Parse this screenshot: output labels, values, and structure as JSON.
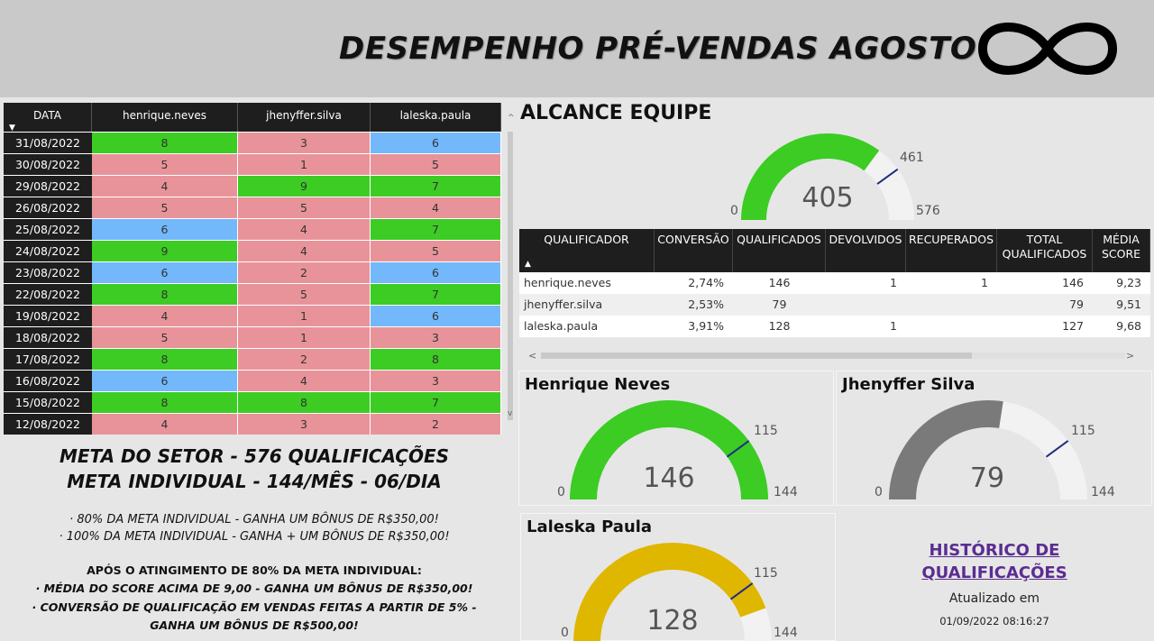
{
  "header": {
    "title": "DESEMPENHO PRÉ-VENDAS AGOSTO",
    "logo_icon": "infinity-icon"
  },
  "colors": {
    "green": "#3ccc24",
    "pink": "#e8939a",
    "blue": "#72b8fa",
    "gold": "#dfb600",
    "grey": "#7a7a7a",
    "track": "#f2f2f2",
    "target": "#1f2d85"
  },
  "matrix": {
    "headers": [
      "DATA",
      "henrique.neves",
      "jhenyffer.silva",
      "laleska.paula"
    ],
    "rows": [
      {
        "date": "31/08/2022",
        "cells": [
          [
            "8",
            "green"
          ],
          [
            "3",
            "pink"
          ],
          [
            "6",
            "blue"
          ]
        ]
      },
      {
        "date": "30/08/2022",
        "cells": [
          [
            "5",
            "pink"
          ],
          [
            "1",
            "pink"
          ],
          [
            "5",
            "pink"
          ]
        ]
      },
      {
        "date": "29/08/2022",
        "cells": [
          [
            "4",
            "pink"
          ],
          [
            "9",
            "green"
          ],
          [
            "7",
            "green"
          ]
        ]
      },
      {
        "date": "26/08/2022",
        "cells": [
          [
            "5",
            "pink"
          ],
          [
            "5",
            "pink"
          ],
          [
            "4",
            "pink"
          ]
        ]
      },
      {
        "date": "25/08/2022",
        "cells": [
          [
            "6",
            "blue"
          ],
          [
            "4",
            "pink"
          ],
          [
            "7",
            "green"
          ]
        ]
      },
      {
        "date": "24/08/2022",
        "cells": [
          [
            "9",
            "green"
          ],
          [
            "4",
            "pink"
          ],
          [
            "5",
            "pink"
          ]
        ]
      },
      {
        "date": "23/08/2022",
        "cells": [
          [
            "6",
            "blue"
          ],
          [
            "2",
            "pink"
          ],
          [
            "6",
            "blue"
          ]
        ]
      },
      {
        "date": "22/08/2022",
        "cells": [
          [
            "8",
            "green"
          ],
          [
            "5",
            "pink"
          ],
          [
            "7",
            "green"
          ]
        ]
      },
      {
        "date": "19/08/2022",
        "cells": [
          [
            "4",
            "pink"
          ],
          [
            "1",
            "pink"
          ],
          [
            "6",
            "blue"
          ]
        ]
      },
      {
        "date": "18/08/2022",
        "cells": [
          [
            "5",
            "pink"
          ],
          [
            "1",
            "pink"
          ],
          [
            "3",
            "pink"
          ]
        ]
      },
      {
        "date": "17/08/2022",
        "cells": [
          [
            "8",
            "green"
          ],
          [
            "2",
            "pink"
          ],
          [
            "8",
            "green"
          ]
        ]
      },
      {
        "date": "16/08/2022",
        "cells": [
          [
            "6",
            "blue"
          ],
          [
            "4",
            "pink"
          ],
          [
            "3",
            "pink"
          ]
        ]
      },
      {
        "date": "15/08/2022",
        "cells": [
          [
            "8",
            "green"
          ],
          [
            "8",
            "green"
          ],
          [
            "7",
            "green"
          ]
        ]
      },
      {
        "date": "12/08/2022",
        "cells": [
          [
            "4",
            "pink"
          ],
          [
            "3",
            "pink"
          ],
          [
            "2",
            "pink"
          ]
        ]
      }
    ]
  },
  "metas": {
    "line1": "META DO SETOR - 576 QUALIFICAÇÕES",
    "line2": "META INDIVIDUAL - 144/MÊS - 06/DIA",
    "rules": [
      "· 80% DA META INDIVIDUAL - GANHA UM BÔNUS DE R$350,00!",
      "· 100% DA META INDIVIDUAL - GANHA + UM BÔNUS DE R$350,00!",
      "APÓS O ATINGIMENTO DE 80% DA META INDIVIDUAL:",
      "· MÉDIA DO SCORE ACIMA DE 9,00 - GANHA UM BÔNUS DE R$350,00!",
      "· CONVERSÃO DE QUALIFICAÇÃO EM VENDAS FEITAS A PARTIR DE 5% -",
      "GANHA UM BÔNUS DE R$500,00!"
    ]
  },
  "alcance": {
    "title": "ALCANCE EQUIPE",
    "min": 0,
    "max": 576,
    "target": 461,
    "value": 405,
    "min_label": "0",
    "max_label": "576",
    "target_label": "461",
    "value_label": "405"
  },
  "qualif_table": {
    "headers": [
      "QUALIFICADOR",
      "CONVERSÃO",
      "QUALIFICADOS",
      "DEVOLVIDOS",
      "RECUPERADOS",
      "TOTAL QUALIFICADOS",
      "MÉDIA SCORE"
    ],
    "rows": [
      [
        "henrique.neves",
        "2,74%",
        "146",
        "1",
        "1",
        "146",
        "9,23"
      ],
      [
        "jhenyffer.silva",
        "2,53%",
        "79",
        "",
        "",
        "79",
        "9,51"
      ],
      [
        "laleska.paula",
        "3,91%",
        "128",
        "1",
        "",
        "127",
        "9,68"
      ]
    ]
  },
  "gauges": [
    {
      "title": "Henrique Neves",
      "min": 0,
      "max": 144,
      "target": 115,
      "value": 146,
      "color": "green",
      "min_label": "0",
      "max_label": "144",
      "target_label": "115",
      "value_label": "146"
    },
    {
      "title": "Jhenyffer Silva",
      "min": 0,
      "max": 144,
      "target": 115,
      "value": 79,
      "color": "grey",
      "min_label": "0",
      "max_label": "144",
      "target_label": "115",
      "value_label": "79"
    },
    {
      "title": "Laleska Paula",
      "min": 0,
      "max": 144,
      "target": 115,
      "value": 128,
      "color": "gold",
      "min_label": "0",
      "max_label": "144",
      "target_label": "115",
      "value_label": "128"
    }
  ],
  "historico": {
    "link": "HISTÓRICO DE QUALIFICAÇÕES",
    "updated_label": "Atualizado em",
    "updated_at": "01/09/2022 08:16:27"
  }
}
